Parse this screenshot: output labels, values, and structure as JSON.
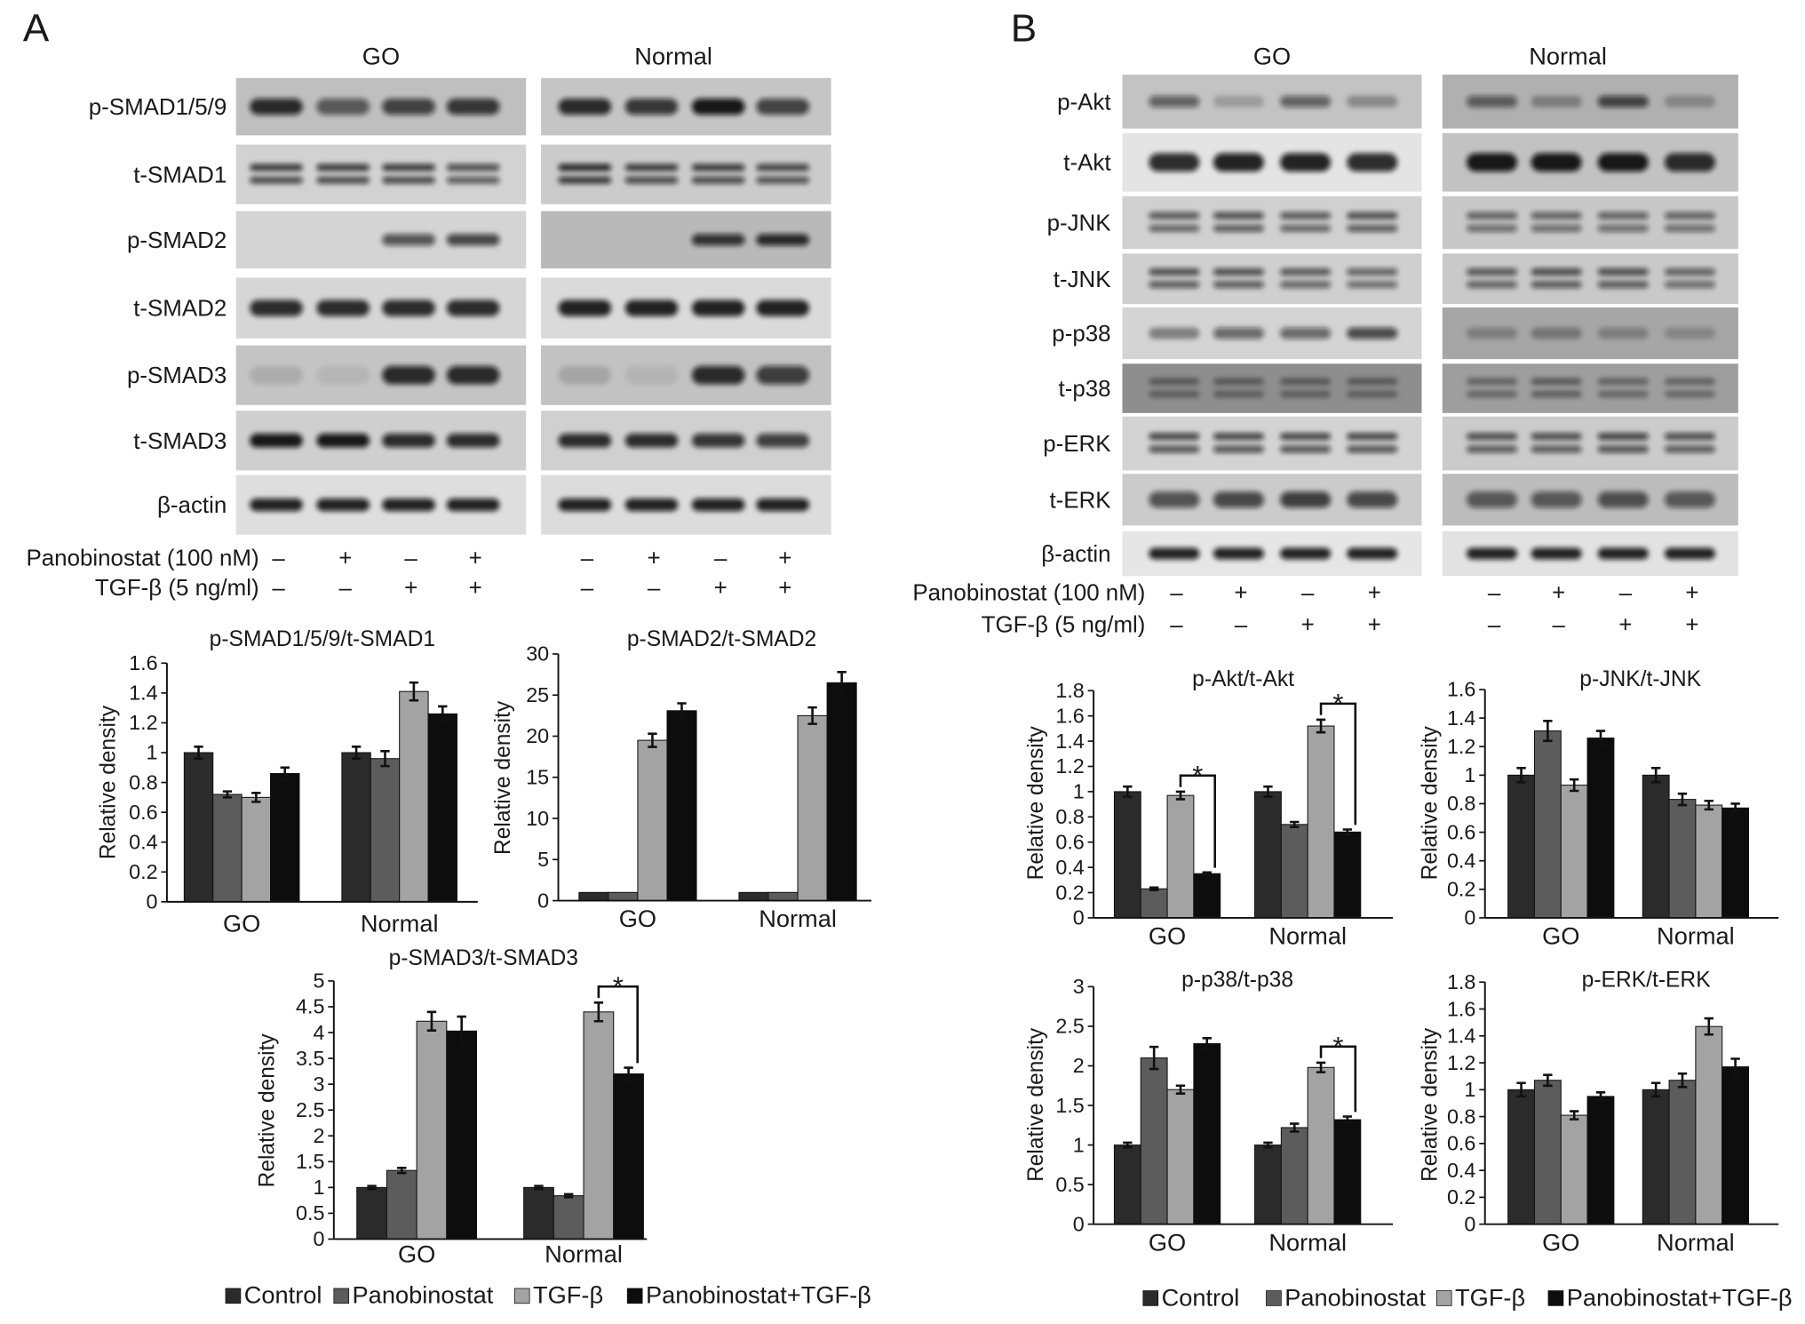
{
  "figure": {
    "panel_a": {
      "label": "A",
      "group_headers": [
        "GO",
        "Normal"
      ],
      "blot_rows": [
        "p-SMAD1/5/9",
        "t-SMAD1",
        "p-SMAD2",
        "t-SMAD2",
        "p-SMAD3",
        "t-SMAD3",
        "β-actin"
      ],
      "treatments": [
        {
          "label": "Panobinostat (100 nM)",
          "signs": [
            "–",
            "+",
            "–",
            "+",
            "–",
            "+",
            "–",
            "+"
          ]
        },
        {
          "label": "TGF-β (5 ng/ml)",
          "signs": [
            "–",
            "–",
            "+",
            "+",
            "–",
            "–",
            "+",
            "+"
          ]
        }
      ]
    },
    "panel_b": {
      "label": "B",
      "group_headers": [
        "GO",
        "Normal"
      ],
      "blot_rows": [
        "p-Akt",
        "t-Akt",
        "p-JNK",
        "t-JNK",
        "p-p38",
        "t-p38",
        "p-ERK",
        "t-ERK",
        "β-actin"
      ],
      "treatments": [
        {
          "label": "Panobinostat (100 nM)",
          "signs": [
            "–",
            "+",
            "–",
            "+",
            "–",
            "+",
            "–",
            "+"
          ]
        },
        {
          "label": "TGF-β (5 ng/ml)",
          "signs": [
            "–",
            "–",
            "+",
            "+",
            "–",
            "–",
            "+",
            "+"
          ]
        }
      ]
    }
  },
  "chart_data": [
    {
      "type": "bar",
      "title": "p-SMAD1/5/9/t-SMAD1",
      "ylabel": "Relative density",
      "categories": [
        "GO",
        "Normal"
      ],
      "ylim": [
        0,
        1.6
      ],
      "yticks": [
        0,
        0.2,
        0.4,
        0.6,
        0.8,
        1,
        1.2,
        1.4,
        1.6
      ],
      "grid": false,
      "series": [
        {
          "name": "Control",
          "color": "#2b2b2b",
          "values": [
            1.0,
            1.0
          ],
          "errors": [
            0.04,
            0.04
          ]
        },
        {
          "name": "Panobinostat",
          "color": "#5c5c5c",
          "values": [
            0.72,
            0.96
          ],
          "errors": [
            0.02,
            0.05
          ]
        },
        {
          "name": "TGF-β",
          "color": "#a3a3a3",
          "values": [
            0.7,
            1.41
          ],
          "errors": [
            0.03,
            0.06
          ]
        },
        {
          "name": "Panobinostat+TGF-β",
          "color": "#0d0d0d",
          "values": [
            0.86,
            1.26
          ],
          "errors": [
            0.04,
            0.05
          ]
        }
      ]
    },
    {
      "type": "bar",
      "title": "p-SMAD2/t-SMAD2",
      "ylabel": "Relative density",
      "categories": [
        "GO",
        "Normal"
      ],
      "ylim": [
        0,
        30
      ],
      "yticks": [
        0,
        5,
        10,
        15,
        20,
        25,
        30
      ],
      "grid": false,
      "series": [
        {
          "name": "Control",
          "color": "#2b2b2b",
          "values": [
            1,
            1
          ],
          "errors": [
            0,
            0
          ]
        },
        {
          "name": "Panobinostat",
          "color": "#5c5c5c",
          "values": [
            1,
            1
          ],
          "errors": [
            0,
            0
          ]
        },
        {
          "name": "TGF-β",
          "color": "#a3a3a3",
          "values": [
            19.5,
            22.5
          ],
          "errors": [
            0.8,
            1.0
          ]
        },
        {
          "name": "Panobinostat+TGF-β",
          "color": "#0d0d0d",
          "values": [
            23.1,
            26.5
          ],
          "errors": [
            0.9,
            1.3
          ]
        }
      ]
    },
    {
      "type": "bar",
      "title": "p-SMAD3/t-SMAD3",
      "ylabel": "Relative density",
      "categories": [
        "GO",
        "Normal"
      ],
      "ylim": [
        0,
        5
      ],
      "yticks": [
        0,
        0.5,
        1,
        1.5,
        2,
        2.5,
        3,
        3.5,
        4,
        4.5,
        5
      ],
      "grid": false,
      "series": [
        {
          "name": "Control",
          "color": "#2b2b2b",
          "values": [
            1.0,
            1.0
          ],
          "errors": [
            0.03,
            0.03
          ]
        },
        {
          "name": "Panobinostat",
          "color": "#5c5c5c",
          "values": [
            1.33,
            0.84
          ],
          "errors": [
            0.05,
            0.03
          ]
        },
        {
          "name": "TGF-β",
          "color": "#a3a3a3",
          "values": [
            4.22,
            4.4
          ],
          "errors": [
            0.18,
            0.18
          ]
        },
        {
          "name": "Panobinostat+TGF-β",
          "color": "#0d0d0d",
          "values": [
            4.03,
            3.2
          ],
          "errors": [
            0.28,
            0.12
          ]
        }
      ],
      "significance": [
        {
          "label": "*",
          "category": "Normal",
          "from": "TGF-β",
          "to": "Panobinostat+TGF-β"
        }
      ]
    },
    {
      "type": "bar",
      "title": "p-Akt/t-Akt",
      "ylabel": "Relative density",
      "categories": [
        "GO",
        "Normal"
      ],
      "ylim": [
        0,
        1.8
      ],
      "yticks": [
        0,
        0.2,
        0.4,
        0.6,
        0.8,
        1,
        1.2,
        1.4,
        1.6,
        1.8
      ],
      "grid": false,
      "series": [
        {
          "name": "Control",
          "color": "#2b2b2b",
          "values": [
            1.0,
            1.0
          ],
          "errors": [
            0.04,
            0.04
          ]
        },
        {
          "name": "Panobinostat",
          "color": "#5c5c5c",
          "values": [
            0.23,
            0.74
          ],
          "errors": [
            0.01,
            0.02
          ]
        },
        {
          "name": "TGF-β",
          "color": "#a3a3a3",
          "values": [
            0.97,
            1.52
          ],
          "errors": [
            0.03,
            0.05
          ]
        },
        {
          "name": "Panobinostat+TGF-β",
          "color": "#0d0d0d",
          "values": [
            0.35,
            0.68
          ],
          "errors": [
            0.01,
            0.02
          ]
        }
      ],
      "significance": [
        {
          "label": "*",
          "category": "GO",
          "from": "TGF-β",
          "to": "Panobinostat+TGF-β"
        },
        {
          "label": "*",
          "category": "Normal",
          "from": "TGF-β",
          "to": "Panobinostat+TGF-β"
        }
      ]
    },
    {
      "type": "bar",
      "title": "p-JNK/t-JNK",
      "ylabel": "Relative density",
      "categories": [
        "GO",
        "Normal"
      ],
      "ylim": [
        0,
        1.6
      ],
      "yticks": [
        0,
        0.2,
        0.4,
        0.6,
        0.8,
        1,
        1.2,
        1.4,
        1.6
      ],
      "grid": false,
      "series": [
        {
          "name": "Control",
          "color": "#2b2b2b",
          "values": [
            1.0,
            1.0
          ],
          "errors": [
            0.05,
            0.05
          ]
        },
        {
          "name": "Panobinostat",
          "color": "#5c5c5c",
          "values": [
            1.31,
            0.83
          ],
          "errors": [
            0.07,
            0.04
          ]
        },
        {
          "name": "TGF-β",
          "color": "#a3a3a3",
          "values": [
            0.93,
            0.79
          ],
          "errors": [
            0.04,
            0.03
          ]
        },
        {
          "name": "Panobinostat+TGF-β",
          "color": "#0d0d0d",
          "values": [
            1.26,
            0.77
          ],
          "errors": [
            0.05,
            0.03
          ]
        }
      ]
    },
    {
      "type": "bar",
      "title": "p-p38/t-p38",
      "ylabel": "Relative density",
      "categories": [
        "GO",
        "Normal"
      ],
      "ylim": [
        0,
        3
      ],
      "yticks": [
        0,
        0.5,
        1,
        1.5,
        2,
        2.5,
        3
      ],
      "grid": false,
      "series": [
        {
          "name": "Control",
          "color": "#2b2b2b",
          "values": [
            1.0,
            1.0
          ],
          "errors": [
            0.03,
            0.03
          ]
        },
        {
          "name": "Panobinostat",
          "color": "#5c5c5c",
          "values": [
            2.1,
            1.22
          ],
          "errors": [
            0.14,
            0.05
          ]
        },
        {
          "name": "TGF-β",
          "color": "#a3a3a3",
          "values": [
            1.7,
            1.98
          ],
          "errors": [
            0.05,
            0.06
          ]
        },
        {
          "name": "Panobinostat+TGF-β",
          "color": "#0d0d0d",
          "values": [
            2.28,
            1.32
          ],
          "errors": [
            0.07,
            0.04
          ]
        }
      ],
      "significance": [
        {
          "label": "*",
          "category": "Normal",
          "from": "TGF-β",
          "to": "Panobinostat+TGF-β"
        }
      ]
    },
    {
      "type": "bar",
      "title": "p-ERK/t-ERK",
      "ylabel": "Relative density",
      "categories": [
        "GO",
        "Normal"
      ],
      "ylim": [
        0,
        1.8
      ],
      "yticks": [
        0,
        0.2,
        0.4,
        0.6,
        0.8,
        1,
        1.2,
        1.4,
        1.6,
        1.8
      ],
      "grid": false,
      "series": [
        {
          "name": "Control",
          "color": "#2b2b2b",
          "values": [
            1.0,
            1.0
          ],
          "errors": [
            0.05,
            0.05
          ]
        },
        {
          "name": "Panobinostat",
          "color": "#5c5c5c",
          "values": [
            1.07,
            1.07
          ],
          "errors": [
            0.04,
            0.05
          ]
        },
        {
          "name": "TGF-β",
          "color": "#a3a3a3",
          "values": [
            0.81,
            1.47
          ],
          "errors": [
            0.03,
            0.06
          ]
        },
        {
          "name": "Panobinostat+TGF-β",
          "color": "#0d0d0d",
          "values": [
            0.95,
            1.17
          ],
          "errors": [
            0.03,
            0.06
          ]
        }
      ]
    }
  ]
}
